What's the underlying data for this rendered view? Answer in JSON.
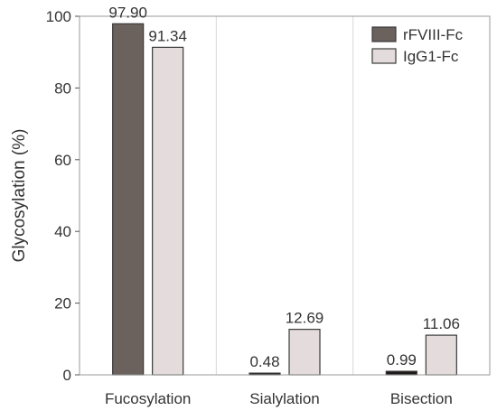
{
  "chart_data": {
    "type": "bar",
    "title": "",
    "xlabel": "",
    "ylabel": "Glycosylation (%)",
    "ylim": [
      0,
      100
    ],
    "yticks": [
      0,
      20,
      40,
      60,
      80,
      100
    ],
    "categories": [
      "Fucosylation",
      "Sialylation",
      "Bisection"
    ],
    "series": [
      {
        "name": "rFVIII-Fc",
        "color": "#6b615d",
        "values": [
          97.9,
          0.48,
          0.99
        ],
        "labels": [
          "97.90",
          "0.48",
          "0.99"
        ]
      },
      {
        "name": "IgG1-Fc",
        "color": "#e4dcdc",
        "values": [
          91.34,
          12.69,
          11.06
        ],
        "labels": [
          "91.34",
          "12.69",
          "11.06"
        ]
      }
    ],
    "legend_position": "top-right",
    "grid": "vertical"
  }
}
